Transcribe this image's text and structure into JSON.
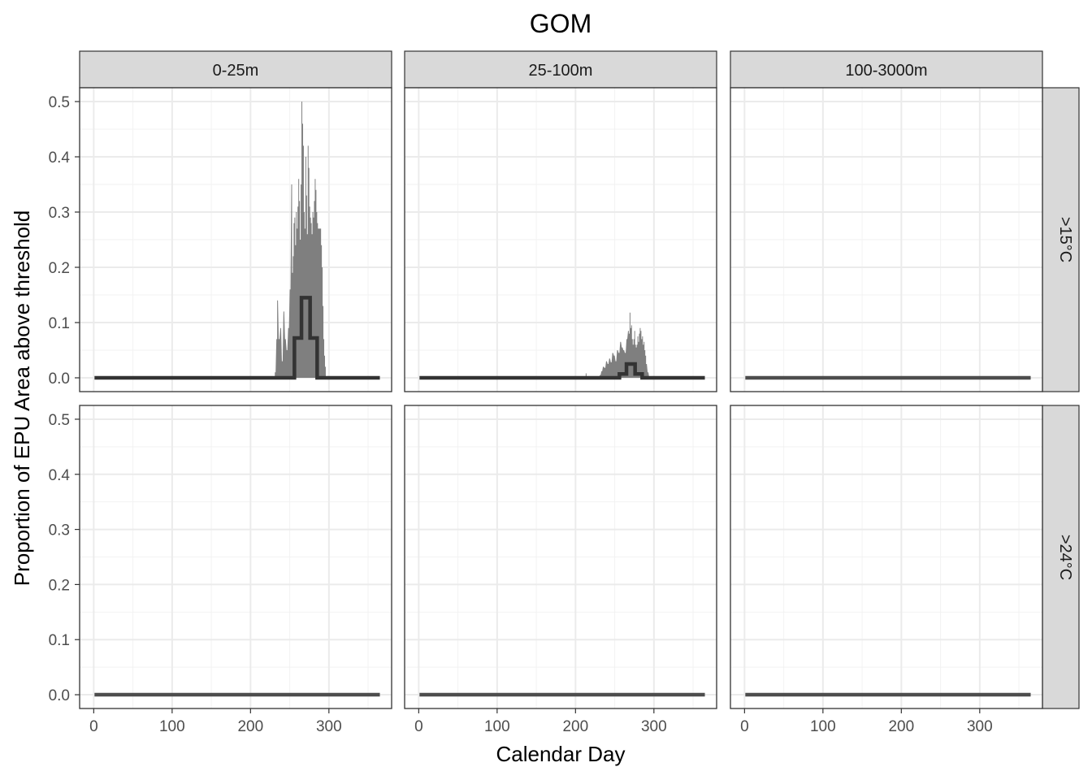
{
  "chart_data": {
    "type": "area",
    "title": "GOM",
    "xlabel": "Calendar Day",
    "ylabel": "Proportion of EPU Area above threshold",
    "xlim": [
      -18,
      380
    ],
    "ylim": [
      -0.025,
      0.525
    ],
    "x_ticks": [
      0,
      100,
      200,
      300
    ],
    "x_tick_labels": [
      "0",
      "100",
      "200",
      "300"
    ],
    "y_ticks": [
      0.0,
      0.1,
      0.2,
      0.3,
      0.4,
      0.5
    ],
    "y_tick_labels": [
      "0.0",
      "0.1",
      "0.2",
      "0.3",
      "0.4",
      "0.5"
    ],
    "grid": true,
    "columns": [
      "0-25m",
      "25-100m",
      "100-3000m"
    ],
    "rows": [
      ">15°C",
      ">24°C"
    ],
    "colors": {
      "area": "#7f7f7f",
      "line": "#333333",
      "zero_line": "#4d4d4d",
      "strip": "#d9d9d9"
    },
    "panels": [
      {
        "column": "0-25m",
        "row": ">15°C",
        "daily_area": [
          [
            230,
            0.0
          ],
          [
            231,
            0.01
          ],
          [
            233,
            0.07
          ],
          [
            234,
            0.14
          ],
          [
            236,
            0.07
          ],
          [
            238,
            0.09
          ],
          [
            240,
            0.03
          ],
          [
            242,
            0.12
          ],
          [
            244,
            0.07
          ],
          [
            246,
            0.05
          ],
          [
            248,
            0.09
          ],
          [
            250,
            0.16
          ],
          [
            252,
            0.35
          ],
          [
            253,
            0.19
          ],
          [
            254,
            0.22
          ],
          [
            255,
            0.28
          ],
          [
            256,
            0.29
          ],
          [
            257,
            0.24
          ],
          [
            258,
            0.3
          ],
          [
            259,
            0.27
          ],
          [
            260,
            0.31
          ],
          [
            261,
            0.36
          ],
          [
            262,
            0.32
          ],
          [
            263,
            0.25
          ],
          [
            264,
            0.35
          ],
          [
            265,
            0.5
          ],
          [
            266,
            0.46
          ],
          [
            267,
            0.42
          ],
          [
            268,
            0.3
          ],
          [
            269,
            0.27
          ],
          [
            270,
            0.4
          ],
          [
            271,
            0.33
          ],
          [
            272,
            0.26
          ],
          [
            273,
            0.42
          ],
          [
            274,
            0.38
          ],
          [
            275,
            0.31
          ],
          [
            276,
            0.29
          ],
          [
            277,
            0.28
          ],
          [
            278,
            0.26
          ],
          [
            279,
            0.3
          ],
          [
            280,
            0.29
          ],
          [
            281,
            0.32
          ],
          [
            282,
            0.36
          ],
          [
            283,
            0.34
          ],
          [
            284,
            0.3
          ],
          [
            285,
            0.28
          ],
          [
            286,
            0.27
          ],
          [
            287,
            0.27
          ],
          [
            288,
            0.27
          ],
          [
            289,
            0.27
          ],
          [
            290,
            0.24
          ],
          [
            291,
            0.2
          ],
          [
            292,
            0.13
          ],
          [
            293,
            0.07
          ],
          [
            294,
            0.04
          ],
          [
            295,
            0.02
          ],
          [
            296,
            0.0
          ]
        ],
        "mean_line": [
          [
            1,
            0.0
          ],
          [
            232,
            0.0
          ],
          [
            256,
            0.0
          ],
          [
            256,
            0.072
          ],
          [
            265,
            0.072
          ],
          [
            265,
            0.145
          ],
          [
            276,
            0.145
          ],
          [
            276,
            0.072
          ],
          [
            285,
            0.072
          ],
          [
            285,
            0.0
          ],
          [
            365,
            0.0
          ]
        ]
      },
      {
        "column": "25-100m",
        "row": ">15°C",
        "daily_area": [
          [
            212,
            0.0
          ],
          [
            213,
            0.008
          ],
          [
            214,
            0.0
          ],
          [
            229,
            0.0
          ],
          [
            231,
            0.005
          ],
          [
            233,
            0.012
          ],
          [
            235,
            0.02
          ],
          [
            237,
            0.018
          ],
          [
            239,
            0.03
          ],
          [
            241,
            0.025
          ],
          [
            243,
            0.035
          ],
          [
            245,
            0.028
          ],
          [
            247,
            0.045
          ],
          [
            249,
            0.04
          ],
          [
            251,
            0.03
          ],
          [
            253,
            0.05
          ],
          [
            255,
            0.045
          ],
          [
            257,
            0.065
          ],
          [
            259,
            0.055
          ],
          [
            261,
            0.05
          ],
          [
            263,
            0.045
          ],
          [
            265,
            0.07
          ],
          [
            267,
            0.085
          ],
          [
            268,
            0.08
          ],
          [
            269,
            0.118
          ],
          [
            270,
            0.09
          ],
          [
            271,
            0.095
          ],
          [
            272,
            0.07
          ],
          [
            273,
            0.06
          ],
          [
            274,
            0.07
          ],
          [
            275,
            0.085
          ],
          [
            276,
            0.06
          ],
          [
            277,
            0.055
          ],
          [
            278,
            0.06
          ],
          [
            279,
            0.075
          ],
          [
            280,
            0.065
          ],
          [
            281,
            0.08
          ],
          [
            282,
            0.09
          ],
          [
            283,
            0.085
          ],
          [
            284,
            0.07
          ],
          [
            285,
            0.075
          ],
          [
            286,
            0.06
          ],
          [
            287,
            0.065
          ],
          [
            288,
            0.05
          ],
          [
            289,
            0.04
          ],
          [
            290,
            0.025
          ],
          [
            292,
            0.01
          ],
          [
            294,
            0.0
          ]
        ],
        "mean_line": [
          [
            1,
            0.0
          ],
          [
            232,
            0.0
          ],
          [
            256,
            0.0
          ],
          [
            256,
            0.007
          ],
          [
            265,
            0.007
          ],
          [
            265,
            0.025
          ],
          [
            276,
            0.025
          ],
          [
            276,
            0.007
          ],
          [
            285,
            0.007
          ],
          [
            285,
            0.0
          ],
          [
            365,
            0.0
          ]
        ]
      },
      {
        "column": "100-3000m",
        "row": ">15°C",
        "daily_area": [],
        "mean_line": [
          [
            1,
            0.0
          ],
          [
            365,
            0.0
          ]
        ]
      },
      {
        "column": "0-25m",
        "row": ">24°C",
        "daily_area": [],
        "mean_line": [
          [
            1,
            0.0
          ],
          [
            365,
            0.0
          ]
        ]
      },
      {
        "column": "25-100m",
        "row": ">24°C",
        "daily_area": [],
        "mean_line": [
          [
            1,
            0.0
          ],
          [
            365,
            0.0
          ]
        ]
      },
      {
        "column": "100-3000m",
        "row": ">24°C",
        "daily_area": [],
        "mean_line": [
          [
            1,
            0.0
          ],
          [
            365,
            0.0
          ]
        ]
      }
    ]
  }
}
